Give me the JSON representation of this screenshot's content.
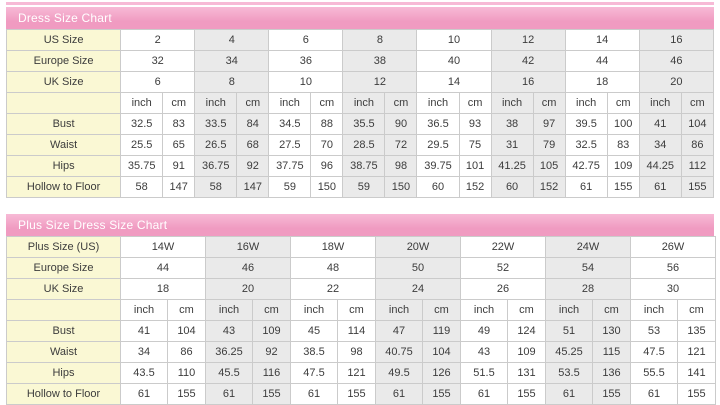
{
  "colors": {
    "header-pink": "#F09BC1",
    "header-pink-light": "#F7BAD6",
    "label-yellow": "#FAF8D4",
    "shade-gray": "#EAEAEA",
    "border-gray": "#CBCBCB",
    "title-text": "#FFFFFF",
    "cell-text": "#3C3C3C"
  },
  "chart_data": [
    {
      "type": "table",
      "title": "Dress Size Chart",
      "units": {
        "inch": "inch",
        "cm": "cm"
      },
      "size_rows": [
        {
          "label": "US Size",
          "values": [
            "2",
            "4",
            "6",
            "8",
            "10",
            "12",
            "14",
            "16"
          ]
        },
        {
          "label": "Europe Size",
          "values": [
            "32",
            "34",
            "36",
            "38",
            "40",
            "42",
            "44",
            "46"
          ]
        },
        {
          "label": "UK Size",
          "values": [
            "6",
            "8",
            "10",
            "12",
            "14",
            "16",
            "18",
            "20"
          ]
        }
      ],
      "measure_rows": [
        {
          "label": "Bust",
          "values": [
            [
              "32.5",
              "83"
            ],
            [
              "33.5",
              "84"
            ],
            [
              "34.5",
              "88"
            ],
            [
              "35.5",
              "90"
            ],
            [
              "36.5",
              "93"
            ],
            [
              "38",
              "97"
            ],
            [
              "39.5",
              "100"
            ],
            [
              "41",
              "104"
            ]
          ]
        },
        {
          "label": "Waist",
          "values": [
            [
              "25.5",
              "65"
            ],
            [
              "26.5",
              "68"
            ],
            [
              "27.5",
              "70"
            ],
            [
              "28.5",
              "72"
            ],
            [
              "29.5",
              "75"
            ],
            [
              "31",
              "79"
            ],
            [
              "32.5",
              "83"
            ],
            [
              "34",
              "86"
            ]
          ]
        },
        {
          "label": "Hips",
          "values": [
            [
              "35.75",
              "91"
            ],
            [
              "36.75",
              "92"
            ],
            [
              "37.75",
              "96"
            ],
            [
              "38.75",
              "98"
            ],
            [
              "39.75",
              "101"
            ],
            [
              "41.25",
              "105"
            ],
            [
              "42.75",
              "109"
            ],
            [
              "44.25",
              "112"
            ]
          ]
        },
        {
          "label": "Hollow to Floor",
          "values": [
            [
              "58",
              "147"
            ],
            [
              "58",
              "147"
            ],
            [
              "59",
              "150"
            ],
            [
              "59",
              "150"
            ],
            [
              "60",
              "152"
            ],
            [
              "60",
              "152"
            ],
            [
              "61",
              "155"
            ],
            [
              "61",
              "155"
            ]
          ]
        }
      ]
    },
    {
      "type": "table",
      "title": "Plus Size Dress Size Chart",
      "units": {
        "inch": "inch",
        "cm": "cm"
      },
      "size_rows": [
        {
          "label": "Plus Size (US)",
          "values": [
            "14W",
            "16W",
            "18W",
            "20W",
            "22W",
            "24W",
            "26W"
          ]
        },
        {
          "label": "Europe Size",
          "values": [
            "44",
            "46",
            "48",
            "50",
            "52",
            "54",
            "56"
          ]
        },
        {
          "label": "UK Size",
          "values": [
            "18",
            "20",
            "22",
            "24",
            "26",
            "28",
            "30"
          ]
        }
      ],
      "measure_rows": [
        {
          "label": "Bust",
          "values": [
            [
              "41",
              "104"
            ],
            [
              "43",
              "109"
            ],
            [
              "45",
              "114"
            ],
            [
              "47",
              "119"
            ],
            [
              "49",
              "124"
            ],
            [
              "51",
              "130"
            ],
            [
              "53",
              "135"
            ]
          ]
        },
        {
          "label": "Waist",
          "values": [
            [
              "34",
              "86"
            ],
            [
              "36.25",
              "92"
            ],
            [
              "38.5",
              "98"
            ],
            [
              "40.75",
              "104"
            ],
            [
              "43",
              "109"
            ],
            [
              "45.25",
              "115"
            ],
            [
              "47.5",
              "121"
            ]
          ]
        },
        {
          "label": "Hips",
          "values": [
            [
              "43.5",
              "110"
            ],
            [
              "45.5",
              "116"
            ],
            [
              "47.5",
              "121"
            ],
            [
              "49.5",
              "126"
            ],
            [
              "51.5",
              "131"
            ],
            [
              "53.5",
              "136"
            ],
            [
              "55.5",
              "141"
            ]
          ]
        },
        {
          "label": "Hollow to Floor",
          "values": [
            [
              "61",
              "155"
            ],
            [
              "61",
              "155"
            ],
            [
              "61",
              "155"
            ],
            [
              "61",
              "155"
            ],
            [
              "61",
              "155"
            ],
            [
              "61",
              "155"
            ],
            [
              "61",
              "155"
            ]
          ]
        }
      ]
    }
  ]
}
